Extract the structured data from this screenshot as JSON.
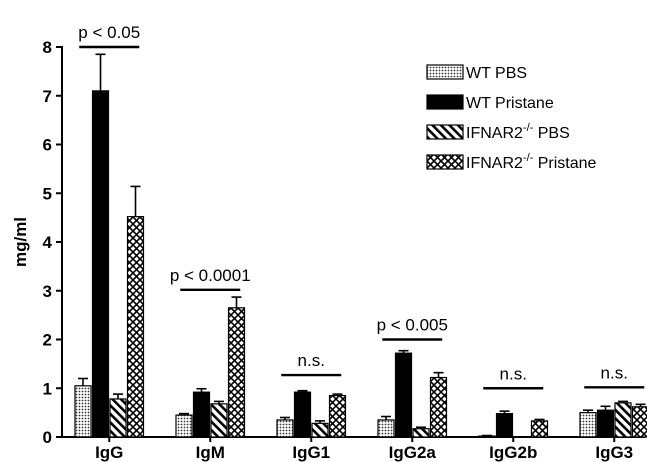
{
  "chart_data": {
    "type": "bar",
    "ylabel": "mg/ml",
    "xlabel": "",
    "title": "",
    "ylim": [
      0,
      8
    ],
    "yticks": [
      0,
      1,
      2,
      3,
      4,
      5,
      6,
      7,
      8
    ],
    "legend_position": "top-right",
    "categories": [
      "IgG",
      "IgM",
      "IgG1",
      "IgG2a",
      "IgG2b",
      "IgG3"
    ],
    "series": [
      {
        "name": "WT PBS",
        "legend_main": "WT PBS",
        "legend_sup": "",
        "legend_tail": "",
        "pattern": "dots",
        "values": [
          1.05,
          0.45,
          0.35,
          0.35,
          0.02,
          0.5
        ],
        "errors": [
          0.15,
          0.03,
          0.05,
          0.07,
          0.01,
          0.05
        ]
      },
      {
        "name": "WT Pristane",
        "legend_main": "WT Pristane",
        "legend_sup": "",
        "legend_tail": "",
        "pattern": "solid",
        "values": [
          7.1,
          0.92,
          0.92,
          1.72,
          0.48,
          0.55
        ],
        "errors": [
          0.75,
          0.07,
          0.03,
          0.05,
          0.05,
          0.08
        ]
      },
      {
        "name": "IFNAR2-/- PBS",
        "legend_main": "IFNAR2",
        "legend_sup": "-/-",
        "legend_tail": " PBS",
        "pattern": "diagonal",
        "values": [
          0.78,
          0.68,
          0.28,
          0.17,
          0.0,
          0.7
        ],
        "errors": [
          0.1,
          0.05,
          0.05,
          0.03,
          0.0,
          0.03
        ]
      },
      {
        "name": "IFNAR2-/- Pristane",
        "legend_main": "IFNAR2",
        "legend_sup": "-/-",
        "legend_tail": " Pristane",
        "pattern": "crosshatch",
        "values": [
          4.52,
          2.65,
          0.85,
          1.22,
          0.33,
          0.62
        ],
        "errors": [
          0.62,
          0.22,
          0.03,
          0.1,
          0.03,
          0.05
        ]
      }
    ],
    "annotations": [
      {
        "category": "IgG",
        "text": "p < 0.05",
        "y": 8.0
      },
      {
        "category": "IgM",
        "text": "p < 0.0001",
        "y": 3.02
      },
      {
        "category": "IgG1",
        "text": "n.s.",
        "y": 1.27
      },
      {
        "category": "IgG2a",
        "text": "p < 0.005",
        "y": 2.0
      },
      {
        "category": "IgG2b",
        "text": "n.s.",
        "y": 1.0
      },
      {
        "category": "IgG3",
        "text": "n.s.",
        "y": 1.02
      }
    ]
  }
}
